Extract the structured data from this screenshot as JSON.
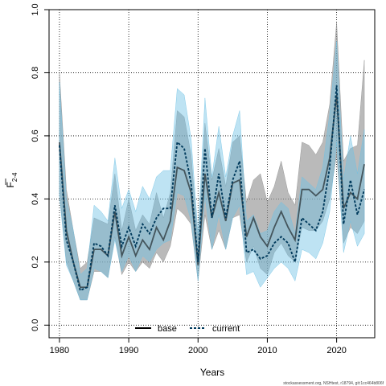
{
  "chart_data": {
    "type": "line",
    "xlabel": "Years",
    "ylabel_main": "F",
    "ylabel_sub": "2-4",
    "xlim": [
      1978.5,
      2025.5
    ],
    "ylim": [
      -0.04,
      1.0
    ],
    "xticks": [
      1980,
      1990,
      2000,
      2010,
      2020
    ],
    "yticks": [
      0.0,
      0.2,
      0.4,
      0.6,
      0.8,
      1.0
    ],
    "ytick_labels": [
      "0.0",
      "0.2",
      "0.4",
      "0.6",
      "0.8",
      "1.0"
    ],
    "grid": true,
    "legend_position": "bottom-center",
    "x": [
      1980,
      1981,
      1982,
      1983,
      1984,
      1985,
      1986,
      1987,
      1988,
      1989,
      1990,
      1991,
      1992,
      1993,
      1994,
      1995,
      1996,
      1997,
      1998,
      1999,
      2000,
      2001,
      2002,
      2003,
      2004,
      2005,
      2006,
      2007,
      2008,
      2009,
      2010,
      2011,
      2012,
      2013,
      2014,
      2015,
      2016,
      2017,
      2018,
      2019,
      2020,
      2021,
      2022,
      2023,
      2024
    ],
    "series": [
      {
        "name": "base",
        "color": "#000000",
        "band_color": "#8c8c8c",
        "values": [
          0.58,
          0.3,
          0.2,
          0.12,
          0.12,
          0.24,
          0.24,
          0.22,
          0.36,
          0.22,
          0.28,
          0.22,
          0.27,
          0.24,
          0.31,
          0.27,
          0.33,
          0.5,
          0.49,
          0.42,
          0.19,
          0.48,
          0.34,
          0.42,
          0.33,
          0.45,
          0.46,
          0.28,
          0.34,
          0.28,
          0.25,
          0.31,
          0.36,
          0.31,
          0.27,
          0.43,
          0.43,
          0.41,
          0.43,
          0.53,
          0.73,
          0.37,
          0.42,
          0.4,
          0.51
        ],
        "upper": [
          0.8,
          0.43,
          0.3,
          0.18,
          0.2,
          0.34,
          0.33,
          0.32,
          0.48,
          0.3,
          0.4,
          0.3,
          0.35,
          0.32,
          0.42,
          0.34,
          0.42,
          0.68,
          0.66,
          0.54,
          0.27,
          0.64,
          0.46,
          0.56,
          0.44,
          0.58,
          0.6,
          0.39,
          0.46,
          0.48,
          0.39,
          0.44,
          0.52,
          0.42,
          0.38,
          0.58,
          0.57,
          0.54,
          0.58,
          0.7,
          0.96,
          0.52,
          0.56,
          0.57,
          0.84
        ],
        "lower": [
          0.42,
          0.2,
          0.14,
          0.08,
          0.08,
          0.17,
          0.17,
          0.15,
          0.28,
          0.16,
          0.2,
          0.17,
          0.2,
          0.18,
          0.23,
          0.2,
          0.25,
          0.37,
          0.35,
          0.32,
          0.14,
          0.35,
          0.24,
          0.3,
          0.24,
          0.34,
          0.35,
          0.2,
          0.25,
          0.18,
          0.16,
          0.23,
          0.26,
          0.22,
          0.2,
          0.31,
          0.3,
          0.3,
          0.33,
          0.4,
          0.54,
          0.26,
          0.31,
          0.29,
          0.33
        ]
      },
      {
        "name": "current",
        "color": "#003a5c",
        "band_color": "#6ec1e4",
        "values": [
          0.57,
          0.27,
          0.2,
          0.11,
          0.12,
          0.26,
          0.25,
          0.22,
          0.38,
          0.25,
          0.31,
          0.25,
          0.32,
          0.29,
          0.34,
          0.37,
          0.37,
          0.58,
          0.56,
          0.45,
          0.2,
          0.56,
          0.34,
          0.48,
          0.34,
          0.46,
          0.52,
          0.23,
          0.24,
          0.21,
          0.22,
          0.26,
          0.28,
          0.26,
          0.2,
          0.34,
          0.32,
          0.3,
          0.36,
          0.5,
          0.76,
          0.32,
          0.46,
          0.35,
          0.43
        ],
        "upper": [
          0.77,
          0.4,
          0.3,
          0.16,
          0.18,
          0.38,
          0.36,
          0.33,
          0.53,
          0.37,
          0.43,
          0.36,
          0.44,
          0.4,
          0.47,
          0.49,
          0.49,
          0.75,
          0.73,
          0.59,
          0.29,
          0.72,
          0.47,
          0.63,
          0.47,
          0.6,
          0.68,
          0.33,
          0.35,
          0.29,
          0.3,
          0.36,
          0.39,
          0.37,
          0.29,
          0.47,
          0.45,
          0.43,
          0.5,
          0.67,
          0.9,
          0.46,
          0.6,
          0.48,
          0.62
        ],
        "lower": [
          0.41,
          0.19,
          0.14,
          0.08,
          0.08,
          0.18,
          0.17,
          0.15,
          0.27,
          0.17,
          0.22,
          0.17,
          0.22,
          0.2,
          0.24,
          0.26,
          0.27,
          0.42,
          0.41,
          0.33,
          0.14,
          0.41,
          0.24,
          0.35,
          0.24,
          0.34,
          0.38,
          0.16,
          0.17,
          0.12,
          0.15,
          0.18,
          0.2,
          0.18,
          0.14,
          0.24,
          0.23,
          0.21,
          0.26,
          0.36,
          0.58,
          0.23,
          0.33,
          0.25,
          0.29
        ]
      }
    ]
  },
  "watermark": "stockassessment.org, NSHtest, r18794, git:1cc464b806f"
}
